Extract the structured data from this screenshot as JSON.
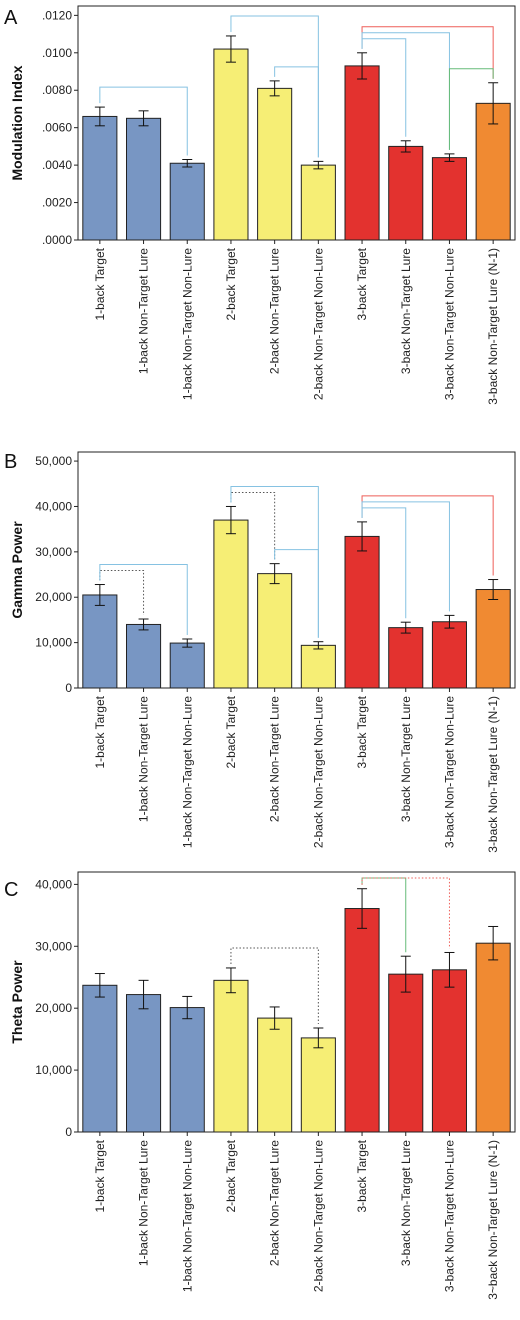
{
  "colors": {
    "blue": "#7896c3",
    "yellow": "#f6ee75",
    "red": "#e3322f",
    "orange": "#f08a32",
    "sig_blue": "#86c2e2",
    "sig_red": "#ee5e58",
    "sig_green": "#66bb78",
    "sig_dotted": "#555555"
  },
  "chart_data": [
    {
      "type": "bar",
      "panel": "A",
      "ylabel": "Modulation Index",
      "ylim": [
        0,
        0.0125
      ],
      "ticks": [
        0,
        0.002,
        0.004,
        0.006,
        0.008,
        0.01,
        0.012
      ],
      "tick_labels": [
        ".0000",
        ".0020",
        ".0040",
        ".0060",
        ".0080",
        ".0100",
        ".0120"
      ],
      "categories": [
        "1-back Target",
        "1-back Non-Target Lure",
        "1-back Non-Target Non-Lure",
        "2-back Target",
        "2-back Non-Target Lure",
        "2-back Non-Target Non-Lure",
        "3-back Target",
        "3-back Non-Target Lure",
        "3-back Non-Target Non-Lure",
        "3-back Non-Target Lure (N-1)"
      ],
      "bar_colors": [
        "blue",
        "blue",
        "blue",
        "yellow",
        "yellow",
        "yellow",
        "red",
        "red",
        "red",
        "orange"
      ],
      "values": [
        0.0066,
        0.0065,
        0.0041,
        0.0102,
        0.0081,
        0.004,
        0.0093,
        0.005,
        0.0044,
        0.0073
      ],
      "errors": [
        0.0005,
        0.0004,
        0.0002,
        0.0007,
        0.0004,
        0.0002,
        0.0007,
        0.0003,
        0.0002,
        0.0011
      ],
      "significance": [
        {
          "from": 0,
          "to": 2,
          "style": "blue"
        },
        {
          "from": 3,
          "to": 5,
          "style": "blue"
        },
        {
          "from": 4,
          "to": 5,
          "style": "blue"
        },
        {
          "from": 6,
          "to": 9,
          "style": "red"
        },
        {
          "from": 6,
          "to": 7,
          "style": "blue"
        },
        {
          "from": 6,
          "to": 8,
          "style": "blue"
        },
        {
          "from": 9,
          "to": 8,
          "style": "green"
        }
      ]
    },
    {
      "type": "bar",
      "panel": "B",
      "ylabel": "Gamma Power",
      "ylim": [
        0,
        52000
      ],
      "ticks": [
        0,
        10000,
        20000,
        30000,
        40000,
        50000
      ],
      "tick_labels": [
        "0",
        "10,000",
        "20,000",
        "30,000",
        "40,000",
        "50,000"
      ],
      "categories": [
        "1-back Target",
        "1-back Non-Target Lure",
        "1-back Non-Target Non-Lure",
        "2-back Target",
        "2-back Non-Target Lure",
        "2-back Non-Target Non-Lure",
        "3-back Target",
        "3-back Non-Target Lure",
        "3-back Non-Target Non-Lure",
        "3-back Non-Target Lure (N-1)"
      ],
      "bar_colors": [
        "blue",
        "blue",
        "blue",
        "yellow",
        "yellow",
        "yellow",
        "red",
        "red",
        "red",
        "orange"
      ],
      "values": [
        20500,
        14000,
        9900,
        37000,
        25200,
        9400,
        33400,
        13300,
        14600,
        21700
      ],
      "errors": [
        2300,
        1200,
        900,
        3000,
        2200,
        800,
        3200,
        1200,
        1400,
        2200
      ],
      "significance": [
        {
          "from": 0,
          "to": 1,
          "style": "dotted"
        },
        {
          "from": 0,
          "to": 2,
          "style": "blue"
        },
        {
          "from": 3,
          "to": 4,
          "style": "dotted"
        },
        {
          "from": 3,
          "to": 5,
          "style": "blue"
        },
        {
          "from": 4,
          "to": 5,
          "style": "blue"
        },
        {
          "from": 6,
          "to": 9,
          "style": "red"
        },
        {
          "from": 6,
          "to": 7,
          "style": "blue"
        },
        {
          "from": 6,
          "to": 8,
          "style": "blue"
        }
      ]
    },
    {
      "type": "bar",
      "panel": "C",
      "ylabel": "Theta Power",
      "ylim": [
        0,
        42000
      ],
      "ticks": [
        0,
        10000,
        20000,
        30000,
        40000
      ],
      "tick_labels": [
        "0",
        "10,000",
        "20,000",
        "30,000",
        "40,000"
      ],
      "categories": [
        "1-back Target",
        "1-back Non-Target Lure",
        "1-back Non-Target Non-Lure",
        "2-back Target",
        "2-back Non-Target Lure",
        "2-back Non-Target Non-Lure",
        "3-back Target",
        "3-back Non-Target Lure",
        "3-back Non-Target Non-Lure",
        "3~back Non-Target Lure (N-1)"
      ],
      "bar_colors": [
        "blue",
        "blue",
        "blue",
        "yellow",
        "yellow",
        "yellow",
        "red",
        "red",
        "red",
        "orange"
      ],
      "values": [
        23700,
        22200,
        20100,
        24500,
        18400,
        15200,
        36100,
        25500,
        26200,
        30500
      ],
      "errors": [
        1900,
        2300,
        1800,
        2000,
        1800,
        1600,
        3200,
        2900,
        2800,
        2700
      ],
      "significance": [
        {
          "from": 3,
          "to": 5,
          "style": "dotted"
        },
        {
          "from": 6,
          "to": 7,
          "style": "green"
        },
        {
          "from": 6,
          "to": 8,
          "style": "dotted-red"
        }
      ]
    }
  ]
}
